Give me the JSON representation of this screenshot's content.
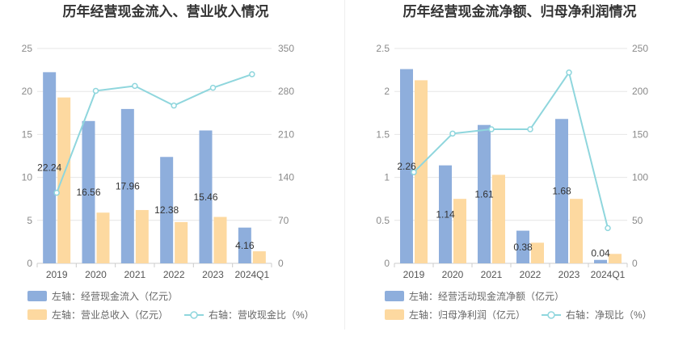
{
  "chart_data": [
    {
      "type": "bar",
      "title": "历年经营现金流入、营业收入情况",
      "categories": [
        "2019",
        "2020",
        "2021",
        "2022",
        "2023",
        "2024Q1"
      ],
      "left_axis": {
        "ylim": [
          0,
          25
        ],
        "ticks": [
          "0",
          "5",
          "10",
          "15",
          "20",
          "25"
        ]
      },
      "right_axis": {
        "ylim": [
          0,
          350
        ],
        "ticks": [
          "0",
          "70",
          "140",
          "210",
          "280",
          "350"
        ]
      },
      "series": [
        {
          "name": "左轴：经营现金流入（亿元）",
          "kind": "bar",
          "axis": "left",
          "color": "#8eaedc",
          "values": [
            22.24,
            16.56,
            17.96,
            12.38,
            15.46,
            4.16
          ],
          "labels": [
            "22.24",
            "16.56",
            "17.96",
            "12.38",
            "15.46",
            "4.16"
          ]
        },
        {
          "name": "左轴：营业总收入（亿元）",
          "kind": "bar",
          "axis": "left",
          "color": "#fdd9a0",
          "values": [
            19.3,
            5.9,
            6.2,
            4.8,
            5.4,
            1.4
          ]
        },
        {
          "name": "右轴：营收现金比（%）",
          "kind": "line",
          "axis": "right",
          "color": "#8fd6dd",
          "values": [
            115,
            281,
            289,
            257,
            286,
            308
          ]
        }
      ],
      "legend": "bottom"
    },
    {
      "type": "bar",
      "title": "历年经营现金流净额、归母净利润情况",
      "categories": [
        "2019",
        "2020",
        "2021",
        "2022",
        "2023",
        "2024Q1"
      ],
      "left_axis": {
        "ylim": [
          0,
          2.5
        ],
        "ticks": [
          "0",
          "0.5",
          "1",
          "1.5",
          "2",
          "2.5"
        ]
      },
      "right_axis": {
        "ylim": [
          0,
          250
        ],
        "ticks": [
          "0",
          "50",
          "100",
          "150",
          "200",
          "250"
        ]
      },
      "series": [
        {
          "name": "左轴：经营活动现金流净额（亿元）",
          "kind": "bar",
          "axis": "left",
          "color": "#8eaedc",
          "values": [
            2.26,
            1.14,
            1.61,
            0.38,
            1.68,
            0.04
          ],
          "labels": [
            "2.26",
            "1.14",
            "1.61",
            "0.38",
            "1.68",
            "0.04"
          ]
        },
        {
          "name": "左轴：归母净利润（亿元）",
          "kind": "bar",
          "axis": "left",
          "color": "#fdd9a0",
          "values": [
            2.13,
            0.75,
            1.03,
            0.24,
            0.75,
            0.11
          ]
        },
        {
          "name": "右轴：净现比（%）",
          "kind": "line",
          "axis": "right",
          "color": "#8fd6dd",
          "values": [
            106,
            151,
            156,
            156,
            222,
            41
          ]
        }
      ],
      "legend": "bottom"
    }
  ]
}
